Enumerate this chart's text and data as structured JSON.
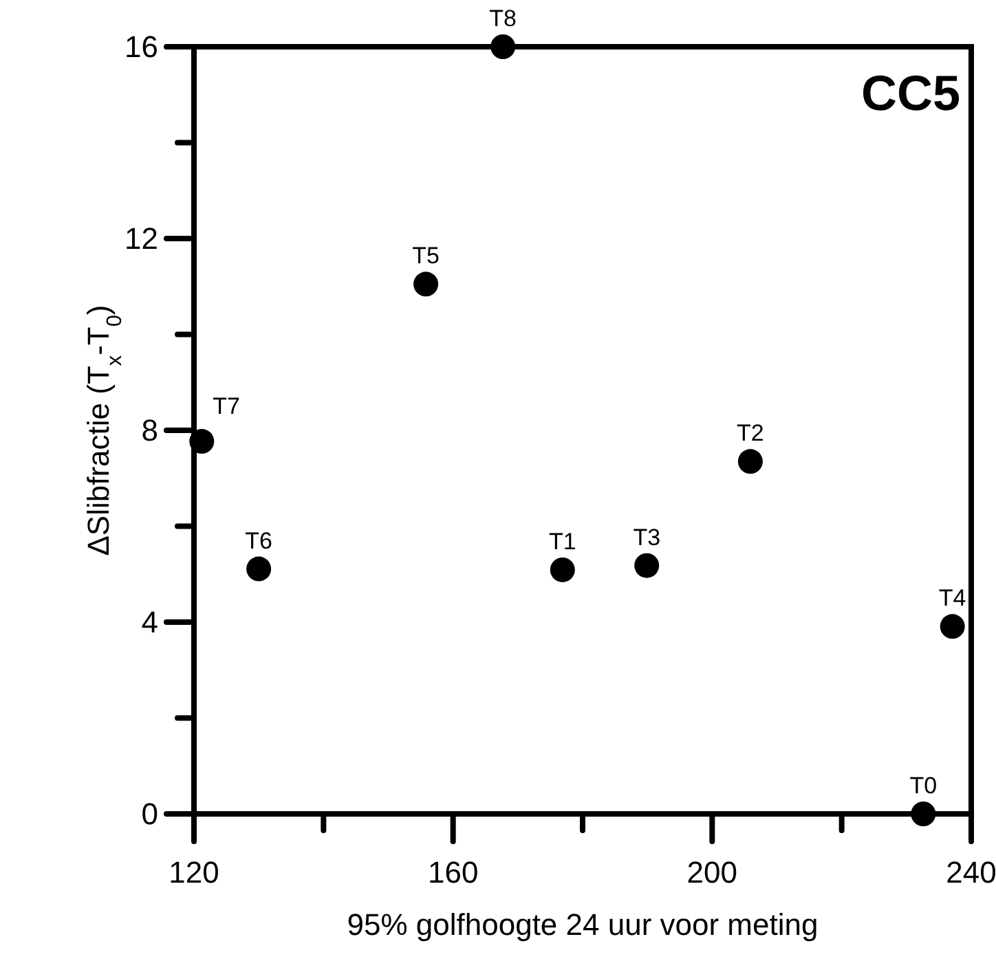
{
  "chart_data": {
    "type": "scatter",
    "xlabel": "95% golfhoogte 24 uur voor meting",
    "ylabel": "ΔSlibfractie (T$_{x}$-T$_{0}$)",
    "x": [
      232.6,
      176.9,
      205.9,
      189.9,
      237.1,
      155.8,
      130.0,
      121.2,
      167.7
    ],
    "values": [
      0,
      5.09,
      7.35,
      5.18,
      3.91,
      11.05,
      5.11,
      7.77,
      16
    ],
    "color": "#000000",
    "marker": "circle",
    "grid": false,
    "xlim": [
      120,
      240
    ],
    "xticks": [
      120,
      {
        "value": 140,
        "label": null
      },
      160,
      {
        "value": 180,
        "label": null
      },
      200,
      {
        "value": 220,
        "label": null
      },
      240
    ],
    "ylim": [
      0,
      16
    ],
    "yticks": [
      0,
      {
        "value": 2,
        "label": null
      },
      4,
      {
        "value": 6,
        "label": null
      },
      8,
      {
        "value": 10,
        "label": null
      },
      12,
      {
        "value": 14,
        "label": null
      },
      16
    ],
    "annotations": [
      "CC5",
      {
        "text": "T0",
        "x": 232.6,
        "y": 0
      },
      {
        "text": "T1",
        "x": 176.9,
        "y": 5.09
      },
      {
        "text": "T2",
        "x": 205.9,
        "y": 7.35
      },
      {
        "text": "T3",
        "x": 189.9,
        "y": 5.18
      },
      {
        "text": "T4",
        "x": 237.1,
        "y": 3.91
      },
      {
        "text": "T5",
        "x": 155.8,
        "y": 11.05
      },
      {
        "text": "T6",
        "x": 130.0,
        "y": 5.11
      },
      {
        "text": "T7",
        "x": 121.2,
        "y": 7.77
      },
      {
        "text": "T8",
        "x": 167.7,
        "y": 16
      }
    ]
  }
}
